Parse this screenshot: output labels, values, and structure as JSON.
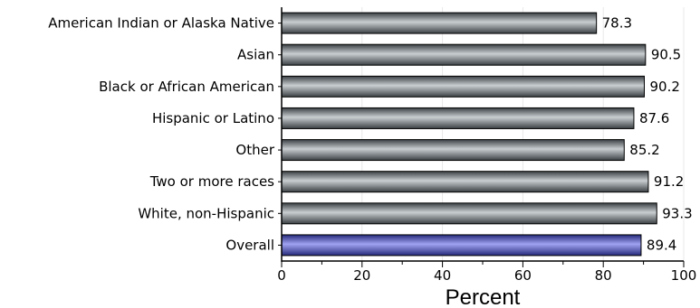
{
  "chart_data": {
    "type": "bar",
    "orientation": "horizontal",
    "categories": [
      "American Indian or Alaska Native",
      "Asian",
      "Black or African American",
      "Hispanic or Latino",
      "Other",
      "Two or more races",
      "White, non-Hispanic",
      "Overall"
    ],
    "values": [
      78.3,
      90.5,
      90.2,
      87.6,
      85.2,
      91.2,
      93.3,
      89.4
    ],
    "value_labels": [
      "78.3",
      "90.5",
      "90.2",
      "87.6",
      "85.2",
      "91.2",
      "93.3",
      "89.4"
    ],
    "title": "",
    "xlabel": "Percent",
    "ylabel": "",
    "xlim": [
      0,
      100
    ],
    "x_ticks": [
      0,
      20,
      40,
      60,
      80,
      100
    ],
    "x_tick_labels": [
      "0",
      "20",
      "40",
      "60",
      "80",
      "100"
    ],
    "grid": "vertical",
    "highlight_category": "Overall",
    "colors": {
      "bar": "#6b7478",
      "bar_light": "#c9ced1",
      "bar_dark": "#3a4043",
      "highlight": "#4a4fc0",
      "highlight_light": "#9ea2f0",
      "highlight_dark": "#262a7a",
      "grid": "#e8e8e8",
      "axis": "#000000"
    }
  }
}
